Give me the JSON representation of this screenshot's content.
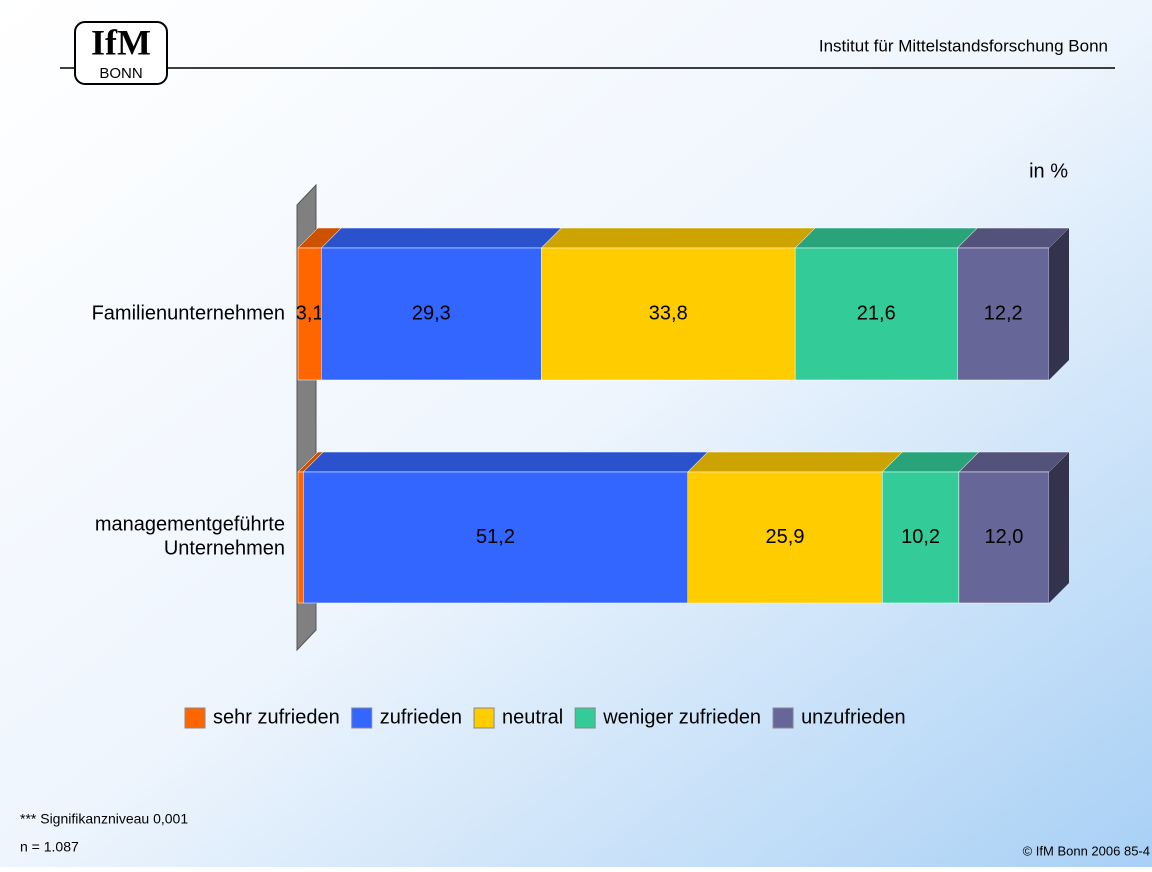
{
  "header": {
    "logo": "IfM",
    "logo_sub": "BONN",
    "institute": "Institut für Mittelstandsforschung Bonn"
  },
  "chart_data": {
    "type": "stacked-bar-3d",
    "orientation": "horizontal",
    "unit_label": "in %",
    "categories": [
      "Familienunternehmen",
      "managementgeführte\nUnternehmen"
    ],
    "xlim": [
      0,
      100
    ],
    "series": [
      {
        "name": "sehr zufrieden",
        "color": "#ff6600",
        "values": [
          3.1,
          0.7
        ],
        "value_labels": [
          "3,1",
          null
        ]
      },
      {
        "name": "zufrieden",
        "color": "#3366ff",
        "values": [
          29.3,
          51.2
        ],
        "value_labels": [
          "29,3",
          "51,2"
        ]
      },
      {
        "name": "neutral",
        "color": "#ffcc00",
        "values": [
          33.8,
          25.9
        ],
        "value_labels": [
          "33,8",
          "25,9"
        ]
      },
      {
        "name": "weniger zufrieden",
        "color": "#33cc99",
        "values": [
          21.6,
          10.2
        ],
        "value_labels": [
          "21,6",
          "10,2"
        ]
      },
      {
        "name": "unzufrieden",
        "color": "#666699",
        "values": [
          12.2,
          12.0
        ],
        "value_labels": [
          "12,2",
          "12,0"
        ]
      }
    ],
    "legend": "bottom"
  },
  "footer": {
    "note": "*** Signifikanzniveau 0,001",
    "n": "n = 1.087",
    "copyright": "© IfM Bonn 2006  85-4"
  }
}
